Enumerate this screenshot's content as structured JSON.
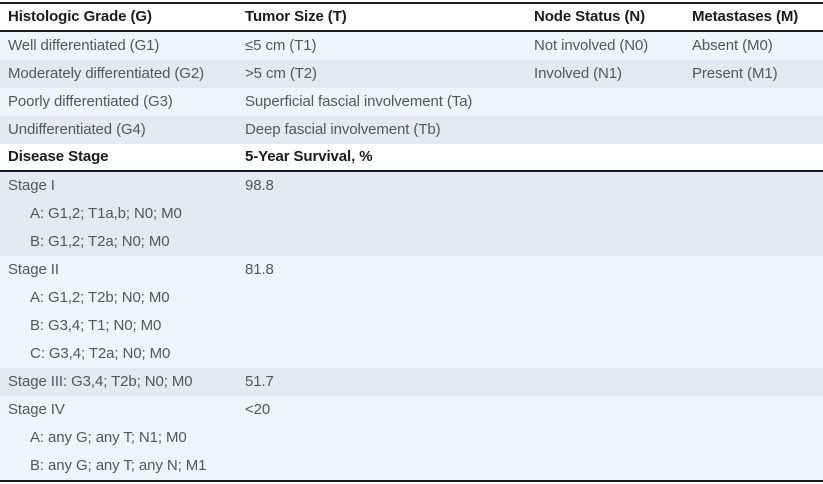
{
  "table": {
    "title_context": "TNM grading and disease-stage survival table",
    "colors": {
      "row_light": "#edf6fb",
      "row_dark": "#e4eaf3",
      "rule": "#1c1d1f",
      "header_text": "#1a1b1d",
      "body_text": "#54575c"
    },
    "top": {
      "headers": [
        "Histologic Grade (G)",
        "Tumor Size (T)",
        "Node Status (N)",
        "Metastases (M)"
      ],
      "rows": [
        [
          "Well differentiated (G1)",
          "≤5 cm (T1)",
          "Not involved (N0)",
          "Absent (M0)"
        ],
        [
          "Moderately differentiated (G2)",
          ">5 cm (T2)",
          "Involved (N1)",
          "Present (M1)"
        ],
        [
          "Poorly differentiated (G3)",
          "Superficial fascial involvement (Ta)",
          "",
          ""
        ],
        [
          "Undifferentiated (G4)",
          "Deep fascial involvement (Tb)",
          "",
          ""
        ]
      ]
    },
    "stage": {
      "headers": [
        "Disease Stage",
        "5-Year Survival, %"
      ],
      "rows": [
        {
          "label": "Stage I",
          "survival": "98.8"
        },
        {
          "label": "A: G1,2; T1a,b; N0; M0",
          "survival": ""
        },
        {
          "label": "B: G1,2; T2a; N0; M0",
          "survival": ""
        },
        {
          "label": "Stage II",
          "survival": "81.8"
        },
        {
          "label": "A: G1,2; T2b; N0; M0",
          "survival": ""
        },
        {
          "label": "B: G3,4; T1; N0; M0",
          "survival": ""
        },
        {
          "label": "C: G3,4; T2a; N0; M0",
          "survival": ""
        },
        {
          "label": "Stage III: G3,4; T2b; N0; M0",
          "survival": "51.7"
        },
        {
          "label": "Stage IV",
          "survival": "<20"
        },
        {
          "label": "A: any G; any T; N1; M0",
          "survival": ""
        },
        {
          "label": "B: any G; any T; any N; M1",
          "survival": ""
        }
      ]
    }
  }
}
